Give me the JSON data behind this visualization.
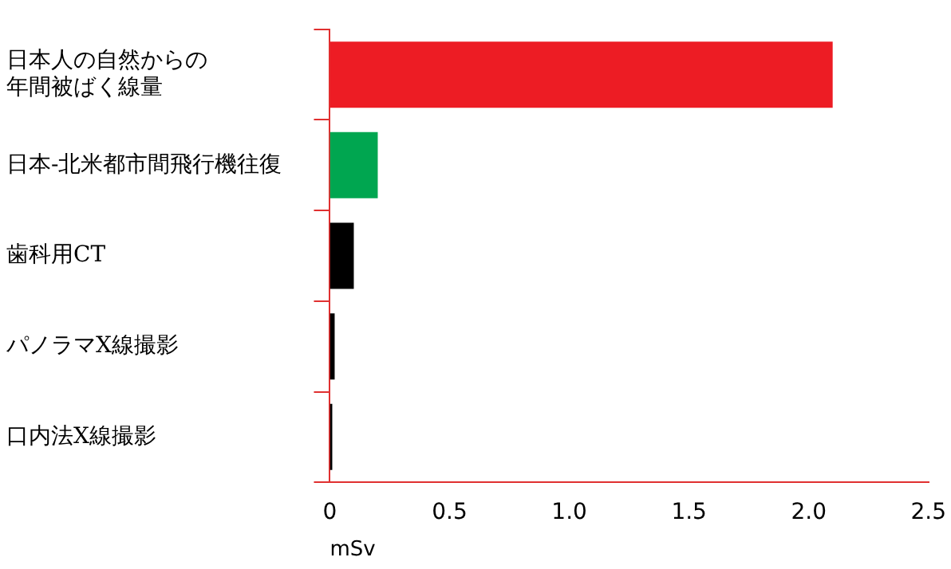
{
  "chart_data": {
    "type": "bar",
    "orientation": "horizontal",
    "xlabel": "mSv",
    "categories": [
      "日本人の自然からの年間被ばく線量",
      "日本-北米都市間飛行機往復",
      "歯科用CT",
      "パノラマX線撮影",
      "口内法X線撮影"
    ],
    "values": [
      2.1,
      0.2,
      0.1,
      0.02,
      0.01
    ],
    "colors": [
      "#ed1c24",
      "#00a650",
      "#000000",
      "#000000",
      "#000000"
    ],
    "xlim": [
      0,
      2.5
    ],
    "xticks": [
      0,
      0.5,
      {
        "value": 1,
        "label": "1.0"
      },
      1.5,
      {
        "value": 2,
        "label": "2.0"
      },
      2.5
    ],
    "grid": false,
    "legend": false
  }
}
